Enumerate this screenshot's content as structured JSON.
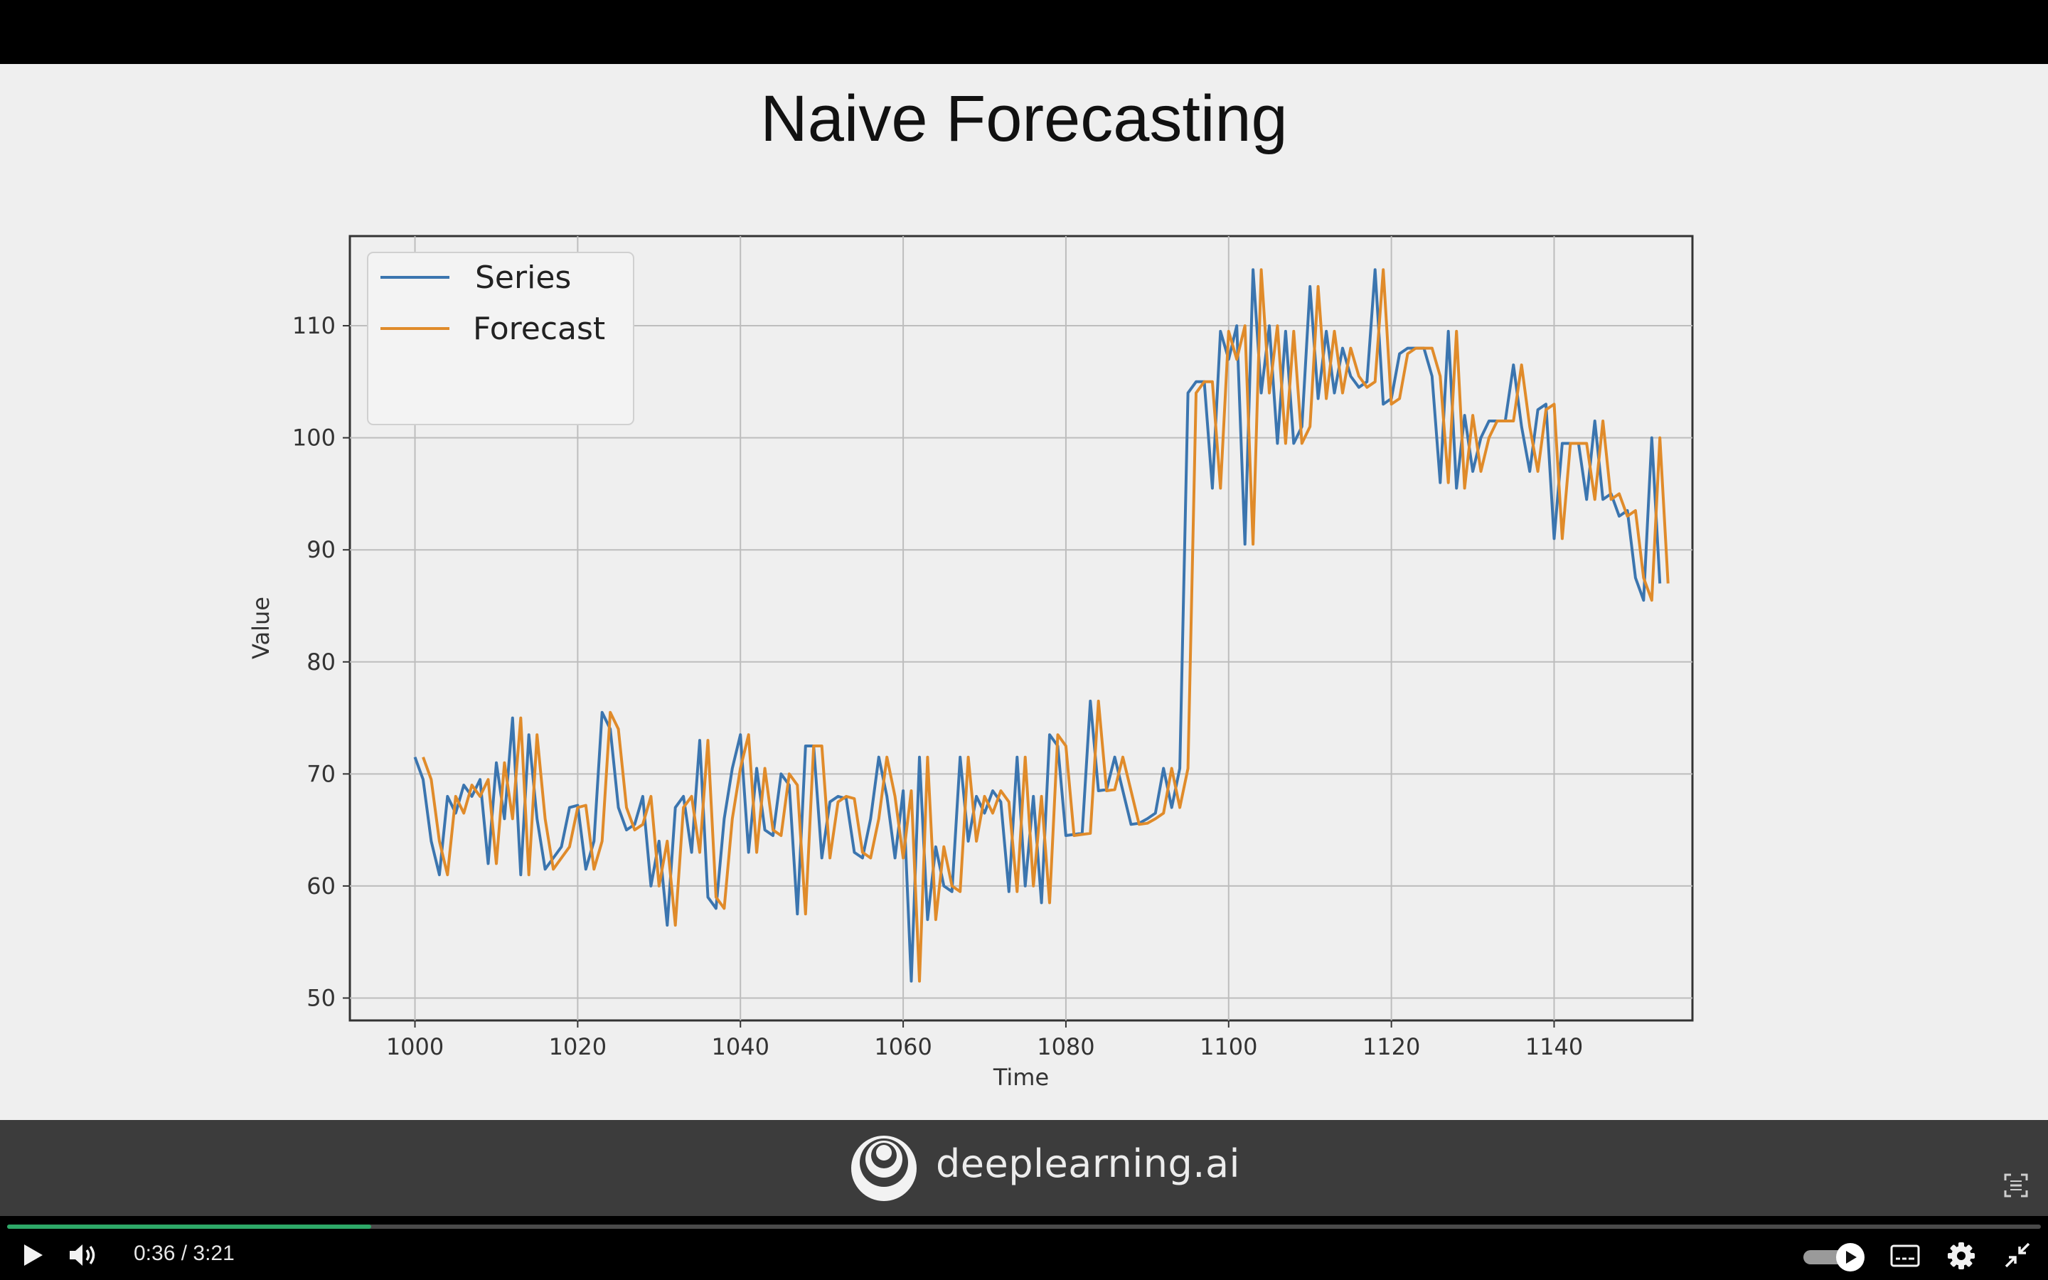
{
  "slide": {
    "title": "Naive Forecasting"
  },
  "chart_data": {
    "type": "line",
    "title": "",
    "xlabel": "Time",
    "ylabel": "Value",
    "xlim": [
      992,
      1157
    ],
    "ylim": [
      48,
      118
    ],
    "xticks": [
      1000,
      1020,
      1040,
      1060,
      1080,
      1100,
      1120,
      1140
    ],
    "yticks": [
      50,
      60,
      70,
      80,
      90,
      100,
      110
    ],
    "grid": true,
    "legend": "upper-left",
    "x_start": 1000,
    "series": [
      {
        "name": "Series",
        "color": "#3b75af",
        "values": [
          71.5,
          69.5,
          64,
          61,
          68,
          66.5,
          69,
          68,
          69.5,
          62,
          71,
          66,
          75,
          61,
          73.5,
          66,
          61.5,
          62.5,
          63.5,
          67,
          67.2,
          61.5,
          64,
          75.5,
          74,
          67,
          65,
          65.5,
          68,
          60,
          64,
          56.5,
          67,
          68,
          63,
          73,
          59,
          58,
          66,
          70.5,
          73.5,
          63,
          70.5,
          65,
          64.5,
          70,
          69,
          57.5,
          72.5,
          72.5,
          62.5,
          67.5,
          68,
          67.8,
          63,
          62.5,
          66,
          71.5,
          68,
          62.5,
          68.5,
          51.5,
          71.5,
          57,
          63.5,
          60,
          59.5,
          71.5,
          64,
          68,
          66.5,
          68.5,
          67.5,
          59.5,
          71.5,
          60,
          68,
          58.5,
          73.5,
          72.5,
          64.5,
          64.6,
          64.7,
          76.5,
          68.5,
          68.6,
          71.5,
          68.5,
          65.5,
          65.6,
          66,
          66.5,
          70.5,
          67,
          70.5,
          104,
          105,
          105,
          95.5,
          109.5,
          107,
          110,
          90.5,
          115,
          104,
          110,
          99.5,
          109.5,
          99.5,
          101,
          113.5,
          103.5,
          109.5,
          104,
          108,
          105.5,
          104.5,
          105,
          115,
          103,
          103.5,
          107.5,
          108,
          108,
          108,
          105.5,
          96,
          109.5,
          95.5,
          102,
          97,
          100,
          101.5,
          101.5,
          101.5,
          106.5,
          101,
          97,
          102.5,
          103,
          91,
          99.5,
          99.5,
          99.5,
          94.5,
          101.5,
          94.5,
          95,
          93,
          93.5,
          87.5,
          85.5,
          100,
          87
        ]
      },
      {
        "name": "Forecast",
        "color": "#e08b2a",
        "values": [
          null,
          71.5,
          69.5,
          64,
          61,
          68,
          66.5,
          69,
          68,
          69.5,
          62,
          71,
          66,
          75,
          61,
          73.5,
          66,
          61.5,
          62.5,
          63.5,
          67,
          67.2,
          61.5,
          64,
          75.5,
          74,
          67,
          65,
          65.5,
          68,
          60,
          64,
          56.5,
          67,
          68,
          63,
          73,
          59,
          58,
          66,
          70.5,
          73.5,
          63,
          70.5,
          65,
          64.5,
          70,
          69,
          57.5,
          72.5,
          72.5,
          62.5,
          67.5,
          68,
          67.8,
          63,
          62.5,
          66,
          71.5,
          68,
          62.5,
          68.5,
          51.5,
          71.5,
          57,
          63.5,
          60,
          59.5,
          71.5,
          64,
          68,
          66.5,
          68.5,
          67.5,
          59.5,
          71.5,
          60,
          68,
          58.5,
          73.5,
          72.5,
          64.5,
          64.6,
          64.7,
          76.5,
          68.5,
          68.6,
          71.5,
          68.5,
          65.5,
          65.6,
          66,
          66.5,
          70.5,
          67,
          70.5,
          104,
          105,
          105,
          95.5,
          109.5,
          107,
          110,
          90.5,
          115,
          104,
          110,
          99.5,
          109.5,
          99.5,
          101,
          113.5,
          103.5,
          109.5,
          104,
          108,
          105.5,
          104.5,
          105,
          115,
          103,
          103.5,
          107.5,
          108,
          108,
          108,
          105.5,
          96,
          109.5,
          95.5,
          102,
          97,
          100,
          101.5,
          101.5,
          101.5,
          106.5,
          101,
          97,
          102.5,
          103,
          91,
          99.5,
          99.5,
          99.5,
          94.5,
          101.5,
          94.5,
          95,
          93,
          93.5,
          87.5,
          85.5,
          100,
          87
        ]
      }
    ]
  },
  "brand": {
    "text": "deeplearning.ai"
  },
  "player": {
    "time_current": "0:36",
    "time_separator": " / ",
    "time_total": "3:21",
    "progress": 0.179,
    "accent": "#2ea868",
    "icons": [
      "play-icon",
      "volume-icon",
      "autoplay-toggle-icon",
      "captions-icon",
      "settings-icon",
      "exit-fullscreen-icon",
      "screen-capture-icon"
    ]
  }
}
